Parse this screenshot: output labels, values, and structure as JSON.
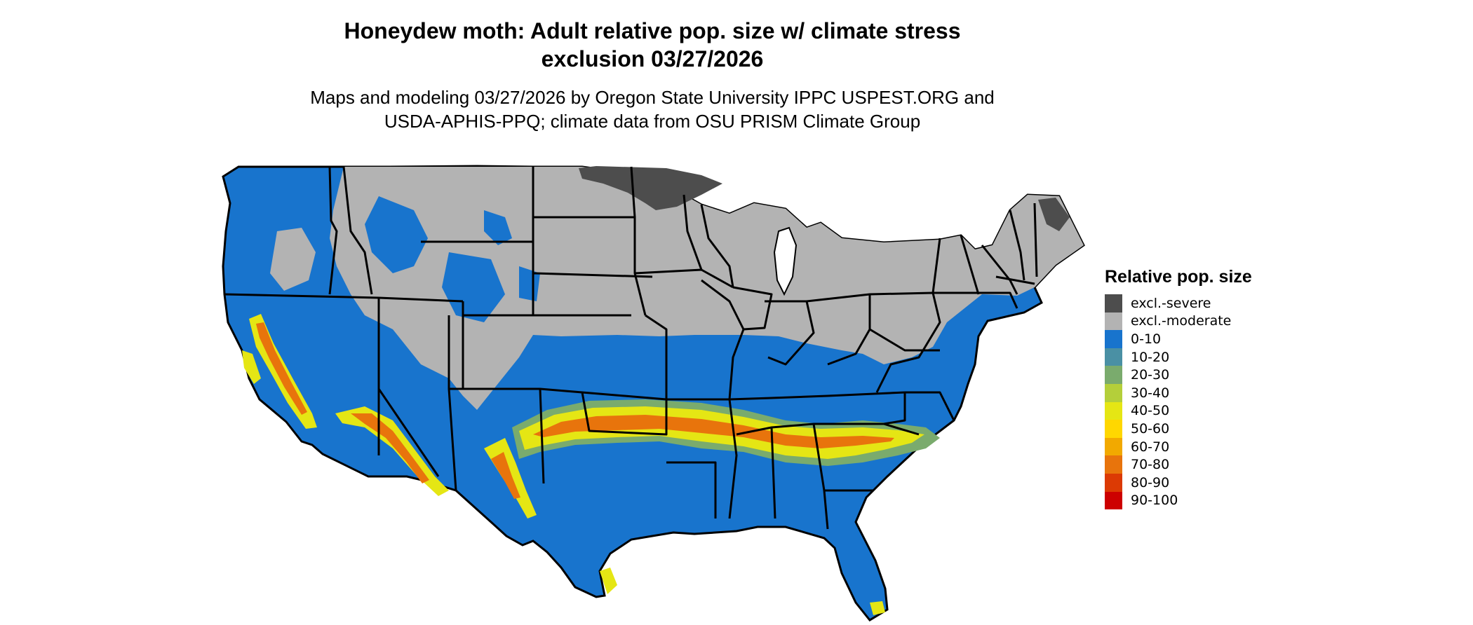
{
  "title": {
    "line1": "Honeydew moth: Adult relative pop. size w/ climate stress",
    "line2": "exclusion 03/27/2026"
  },
  "subtitle": {
    "line1": "Maps and modeling 03/27/2026 by Oregon State University IPPC USPEST.ORG and",
    "line2": "USDA-APHIS-PPQ; climate data from OSU PRISM Climate Group"
  },
  "legend": {
    "title": "Relative pop. size",
    "items": [
      {
        "label": "excl.-severe",
        "color": "#4d4d4d"
      },
      {
        "label": "excl.-moderate",
        "color": "#b3b3b3"
      },
      {
        "label": "0-10",
        "color": "#1874cd"
      },
      {
        "label": "10-20",
        "color": "#4a90a4"
      },
      {
        "label": "20-30",
        "color": "#7aab6d"
      },
      {
        "label": "30-40",
        "color": "#b4cf3a"
      },
      {
        "label": "40-50",
        "color": "#e5e614"
      },
      {
        "label": "50-60",
        "color": "#ffd700"
      },
      {
        "label": "60-70",
        "color": "#f2a900"
      },
      {
        "label": "70-80",
        "color": "#e8740c"
      },
      {
        "label": "80-90",
        "color": "#dc3a04"
      },
      {
        "label": "90-100",
        "color": "#cd0000"
      }
    ]
  },
  "map_colors": {
    "outline": "#000000",
    "excluded_severe": "#4d4d4d",
    "excluded_moderate": "#b3b3b3",
    "low": "#1874cd",
    "band_yellow": "#e5e614",
    "band_orange": "#e8740c",
    "band_green": "#7aab6d"
  }
}
